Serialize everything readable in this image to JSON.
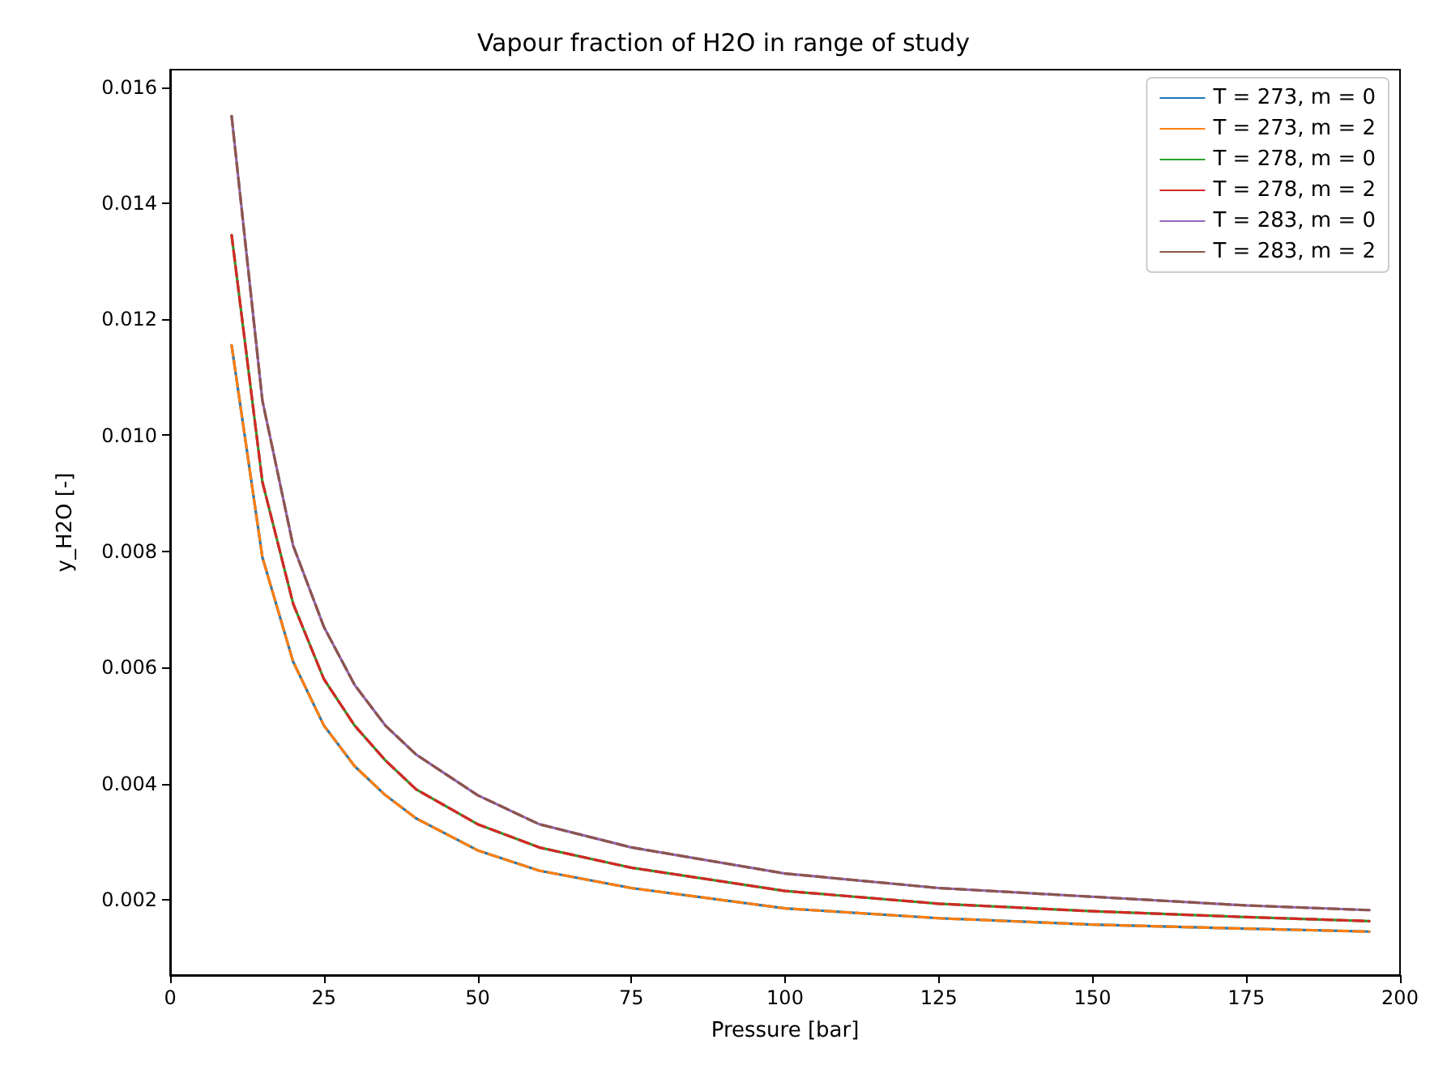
{
  "chart_data": {
    "type": "line",
    "title": "Vapour fraction of H2O in range of study",
    "xlabel": "Pressure [bar]",
    "ylabel": "y_H2O [-]",
    "x": [
      10,
      15,
      20,
      25,
      30,
      35,
      40,
      50,
      60,
      75,
      100,
      125,
      150,
      175,
      195
    ],
    "series": [
      {
        "name": "T = 273, m = 0",
        "color": "#1f77b4",
        "line_style": "solid",
        "values": [
          0.01155,
          0.0079,
          0.0061,
          0.005,
          0.0043,
          0.0038,
          0.0034,
          0.00285,
          0.0025,
          0.0022,
          0.00185,
          0.00168,
          0.00157,
          0.0015,
          0.00145
        ]
      },
      {
        "name": "T = 273, m = 2",
        "color": "#ff7f0e",
        "line_style": "dashed",
        "values": [
          0.01155,
          0.0079,
          0.0061,
          0.005,
          0.0043,
          0.0038,
          0.0034,
          0.00285,
          0.0025,
          0.0022,
          0.00185,
          0.00168,
          0.00157,
          0.0015,
          0.00145
        ]
      },
      {
        "name": "T = 278, m = 0",
        "color": "#2ca02c",
        "line_style": "solid",
        "values": [
          0.01345,
          0.0092,
          0.0071,
          0.0058,
          0.005,
          0.0044,
          0.0039,
          0.0033,
          0.0029,
          0.00255,
          0.00215,
          0.00193,
          0.0018,
          0.0017,
          0.00163
        ]
      },
      {
        "name": "T = 278, m = 2",
        "color": "#d62728",
        "line_style": "dashed",
        "values": [
          0.01345,
          0.0092,
          0.0071,
          0.0058,
          0.005,
          0.0044,
          0.0039,
          0.0033,
          0.0029,
          0.00255,
          0.00215,
          0.00193,
          0.0018,
          0.0017,
          0.00163
        ]
      },
      {
        "name": "T = 283, m = 0",
        "color": "#9467bd",
        "line_style": "solid",
        "values": [
          0.0155,
          0.0106,
          0.0081,
          0.0067,
          0.0057,
          0.005,
          0.0045,
          0.0038,
          0.0033,
          0.0029,
          0.00245,
          0.0022,
          0.00205,
          0.0019,
          0.00182
        ]
      },
      {
        "name": "T = 283, m = 2",
        "color": "#8c564b",
        "line_style": "dashed",
        "values": [
          0.0155,
          0.0106,
          0.0081,
          0.0067,
          0.0057,
          0.005,
          0.0045,
          0.0038,
          0.0033,
          0.0029,
          0.00245,
          0.0022,
          0.00205,
          0.0019,
          0.00182
        ]
      }
    ],
    "xlim": [
      0,
      200
    ],
    "xticks": [
      0,
      25,
      50,
      75,
      100,
      125,
      150,
      175,
      200
    ],
    "ylim": [
      0.0007,
      0.0163
    ],
    "yticks": [
      {
        "value": 0.002,
        "label": "0.002"
      },
      {
        "value": 0.004,
        "label": "0.004"
      },
      {
        "value": 0.006,
        "label": "0.006"
      },
      {
        "value": 0.008,
        "label": "0.008"
      },
      {
        "value": 0.01,
        "label": "0.010"
      },
      {
        "value": 0.012,
        "label": "0.012"
      },
      {
        "value": 0.014,
        "label": "0.014"
      },
      {
        "value": 0.016,
        "label": "0.016"
      }
    ],
    "grid": false,
    "legend": "top right",
    "marker": "none"
  }
}
